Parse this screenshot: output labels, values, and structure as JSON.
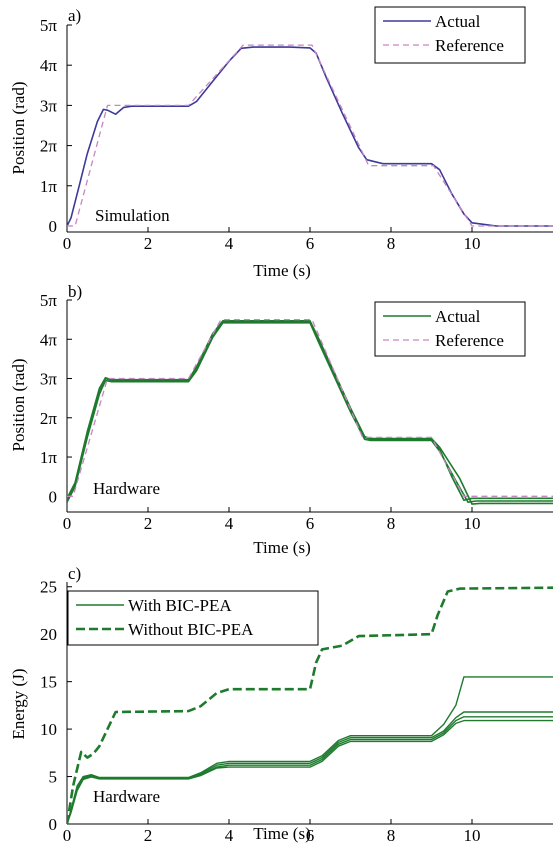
{
  "chart_data": [
    {
      "type": "line",
      "panel_label": "a)",
      "xlabel": "Time (s)",
      "ylabel": "Position (rad)",
      "xlim": [
        0,
        12
      ],
      "ylim": [
        -0.15,
        5
      ],
      "xticks": [
        0,
        2,
        4,
        6,
        8,
        10
      ],
      "xtick_labels": [
        "0",
        "2",
        "4",
        "6",
        "8",
        "10"
      ],
      "yticks": [
        0,
        1,
        2,
        3,
        4,
        5
      ],
      "ytick_labels": [
        "0",
        "1π",
        "2π",
        "3π",
        "4π",
        "5π"
      ],
      "annotation": "Simulation",
      "legend": "top-right",
      "series": [
        {
          "name": "Actual",
          "color": "#3e3a9a",
          "style": "solid",
          "x": [
            0,
            0.1,
            0.3,
            0.5,
            0.75,
            0.9,
            1.0,
            1.2,
            1.4,
            1.6,
            3.0,
            3.2,
            3.6,
            4.0,
            4.3,
            4.6,
            5.0,
            5.5,
            6.0,
            6.15,
            6.4,
            6.8,
            7.2,
            7.4,
            7.6,
            7.8,
            9.0,
            9.2,
            9.5,
            9.8,
            10.0,
            10.3,
            10.6,
            12
          ],
          "y": [
            0,
            0.2,
            1.0,
            1.8,
            2.6,
            2.9,
            2.88,
            2.78,
            2.95,
            2.98,
            2.98,
            3.1,
            3.6,
            4.1,
            4.42,
            4.45,
            4.45,
            4.45,
            4.43,
            4.3,
            3.7,
            2.8,
            1.95,
            1.65,
            1.6,
            1.55,
            1.55,
            1.4,
            0.8,
            0.3,
            0.08,
            0.04,
            0.0,
            0.0
          ]
        },
        {
          "name": "Reference",
          "color": "#c686c1",
          "style": "dashed",
          "x": [
            0,
            0.2,
            1.0,
            3.0,
            4.35,
            6.05,
            7.45,
            9.05,
            10.0,
            12
          ],
          "y": [
            0,
            0.0,
            3.0,
            3.0,
            4.5,
            4.5,
            1.5,
            1.5,
            0.0,
            0.0
          ]
        }
      ]
    },
    {
      "type": "line",
      "panel_label": "b)",
      "xlabel": "Time (s)",
      "ylabel": "Position (rad)",
      "xlim": [
        0,
        12
      ],
      "ylim": [
        -0.4,
        5
      ],
      "xticks": [
        0,
        2,
        4,
        6,
        8,
        10
      ],
      "xtick_labels": [
        "0",
        "2",
        "4",
        "6",
        "8",
        "10"
      ],
      "yticks": [
        0,
        1,
        2,
        3,
        4,
        5
      ],
      "ytick_labels": [
        "0",
        "1π",
        "2π",
        "3π",
        "4π",
        "5π"
      ],
      "annotation": "Hardware",
      "legend": "top-right",
      "series": [
        {
          "name": "Actual",
          "color": "#1e7b2e",
          "style": "solid",
          "x": [
            0,
            0.2,
            0.5,
            0.8,
            0.95,
            1.1,
            3.0,
            3.2,
            3.6,
            3.85,
            4.05,
            6.0,
            6.2,
            6.6,
            7.0,
            7.35,
            7.5,
            9.0,
            9.2,
            9.5,
            9.8,
            10.0,
            12
          ],
          "y": [
            -0.1,
            0.3,
            1.6,
            2.7,
            3.0,
            2.95,
            2.95,
            3.25,
            4.1,
            4.45,
            4.45,
            4.45,
            4.0,
            3.1,
            2.2,
            1.5,
            1.45,
            1.45,
            1.2,
            0.5,
            -0.1,
            -0.05,
            -0.05
          ]
        },
        {
          "name": "",
          "color": "#1e7b2e",
          "style": "solid",
          "x": [
            0,
            0.2,
            0.5,
            0.8,
            0.95,
            1.1,
            3.0,
            3.2,
            3.6,
            3.85,
            4.05,
            6.0,
            6.2,
            6.6,
            7.0,
            7.35,
            7.5,
            9.0,
            9.2,
            9.6,
            9.9,
            10.1,
            12
          ],
          "y": [
            -0.15,
            0.25,
            1.5,
            2.6,
            2.95,
            2.92,
            2.92,
            3.2,
            4.05,
            4.42,
            4.42,
            4.42,
            3.95,
            3.05,
            2.15,
            1.45,
            1.42,
            1.42,
            1.15,
            0.4,
            -0.15,
            -0.12,
            -0.12
          ]
        },
        {
          "name": "",
          "color": "#1e7b2e",
          "style": "solid",
          "x": [
            0,
            0.2,
            0.5,
            0.8,
            0.95,
            1.1,
            3.0,
            3.2,
            3.6,
            3.85,
            4.05,
            6.0,
            6.2,
            6.6,
            7.0,
            7.35,
            7.5,
            9.0,
            9.2,
            9.7,
            10.0,
            10.2,
            12
          ],
          "y": [
            -0.05,
            0.35,
            1.65,
            2.75,
            3.02,
            2.97,
            2.97,
            3.3,
            4.15,
            4.47,
            4.47,
            4.47,
            4.05,
            3.15,
            2.25,
            1.52,
            1.47,
            1.47,
            1.25,
            0.45,
            -0.2,
            -0.18,
            -0.18
          ]
        },
        {
          "name": "Reference",
          "color": "#c686c1",
          "style": "dashed",
          "x": [
            0,
            0.15,
            1.0,
            3.0,
            3.8,
            6.05,
            7.3,
            9.0,
            9.8,
            12
          ],
          "y": [
            0,
            0.0,
            3.0,
            3.0,
            4.5,
            4.5,
            1.5,
            1.5,
            0.0,
            0.0
          ]
        }
      ]
    },
    {
      "type": "line",
      "panel_label": "c)",
      "xlabel": "Time (s)",
      "ylabel": "Energy (J)",
      "xlim": [
        0,
        12
      ],
      "ylim": [
        0,
        25.5
      ],
      "xticks": [
        0,
        2,
        4,
        6,
        8,
        10
      ],
      "xtick_labels": [
        "0",
        "2",
        "4",
        "6",
        "8",
        "10"
      ],
      "yticks": [
        0,
        5,
        10,
        15,
        20,
        25
      ],
      "ytick_labels": [
        "0",
        "5",
        "10",
        "15",
        "20",
        "25"
      ],
      "annotation": "Hardware",
      "legend": "top-left",
      "series": [
        {
          "name": "With BIC-PEA",
          "color": "#1e7b2e",
          "style": "solid",
          "x": [
            0,
            0.1,
            0.25,
            0.4,
            0.6,
            0.8,
            1.0,
            3.0,
            3.3,
            3.7,
            4.0,
            6.0,
            6.3,
            6.7,
            7.0,
            9.0,
            9.3,
            9.6,
            9.8,
            12
          ],
          "y": [
            0,
            1.5,
            4.0,
            5.0,
            5.2,
            4.9,
            4.9,
            4.9,
            5.4,
            6.4,
            6.6,
            6.6,
            7.2,
            8.8,
            9.3,
            9.3,
            10.5,
            12.5,
            15.5,
            15.5
          ]
        },
        {
          "name": "",
          "color": "#1e7b2e",
          "style": "solid",
          "x": [
            0,
            0.1,
            0.25,
            0.4,
            0.6,
            0.8,
            1.0,
            3.0,
            3.3,
            3.7,
            4.0,
            6.0,
            6.3,
            6.7,
            7.0,
            9.0,
            9.3,
            9.6,
            9.8,
            12
          ],
          "y": [
            0,
            1.4,
            3.8,
            4.9,
            5.1,
            4.85,
            4.85,
            4.85,
            5.3,
            6.2,
            6.4,
            6.4,
            7.0,
            8.6,
            9.1,
            9.1,
            9.8,
            11.2,
            11.8,
            11.8
          ]
        },
        {
          "name": "",
          "color": "#1e7b2e",
          "style": "solid",
          "x": [
            0,
            0.1,
            0.25,
            0.4,
            0.6,
            0.8,
            1.0,
            3.0,
            3.3,
            3.7,
            4.0,
            6.0,
            6.3,
            6.7,
            7.0,
            9.0,
            9.3,
            9.6,
            9.8,
            12
          ],
          "y": [
            0,
            1.3,
            3.6,
            4.8,
            5.0,
            4.8,
            4.8,
            4.8,
            5.2,
            6.0,
            6.2,
            6.2,
            6.8,
            8.4,
            8.9,
            8.9,
            9.6,
            10.9,
            11.3,
            11.3
          ]
        },
        {
          "name": "",
          "color": "#1e7b2e",
          "style": "solid",
          "x": [
            0,
            0.1,
            0.25,
            0.4,
            0.6,
            0.8,
            1.0,
            3.0,
            3.3,
            3.7,
            4.0,
            6.0,
            6.3,
            6.7,
            7.0,
            9.0,
            9.3,
            9.6,
            9.8,
            12
          ],
          "y": [
            0,
            1.2,
            3.5,
            4.7,
            4.95,
            4.75,
            4.75,
            4.75,
            5.1,
            5.9,
            6.0,
            6.0,
            6.6,
            8.2,
            8.7,
            8.7,
            9.4,
            10.6,
            10.9,
            10.9
          ]
        },
        {
          "name": "Without BIC-PEA",
          "color": "#1e7b2e",
          "style": "dashed",
          "x": [
            0,
            0.15,
            0.35,
            0.5,
            0.65,
            0.8,
            1.0,
            1.2,
            3.0,
            3.3,
            3.7,
            4.0,
            6.0,
            6.15,
            6.3,
            6.8,
            7.2,
            9.0,
            9.15,
            9.4,
            9.7,
            12
          ],
          "y": [
            0,
            4.0,
            7.6,
            7.0,
            7.4,
            8.2,
            10.0,
            11.8,
            11.9,
            12.4,
            13.8,
            14.2,
            14.2,
            17.0,
            18.4,
            18.8,
            19.8,
            20.0,
            22.0,
            24.5,
            24.8,
            24.9
          ]
        }
      ]
    }
  ]
}
